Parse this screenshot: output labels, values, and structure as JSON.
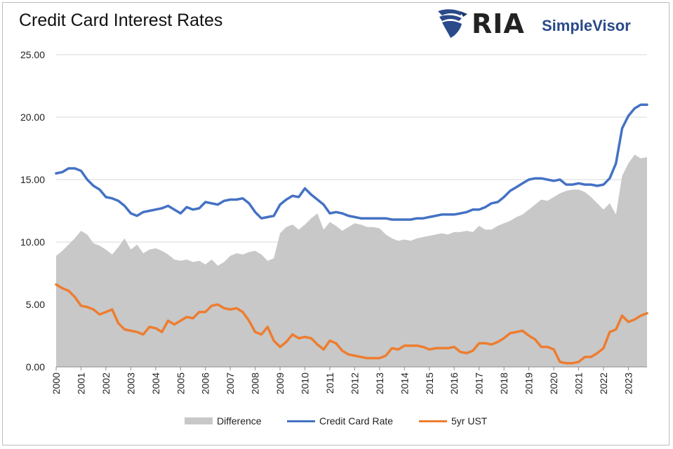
{
  "header": {
    "logo_text": "RIA",
    "brand_text": "SimpleVisor"
  },
  "colors": {
    "difference": "#c8c8c8",
    "credit_card": "#4472c4",
    "ust": "#ed7d31",
    "grid": "#d9d9d9",
    "logo_blue": "#2a4a8a"
  },
  "chart_data": {
    "type": "area",
    "title": "Credit Card Interest Rates",
    "xlabel": "",
    "ylabel": "",
    "ylim": [
      0,
      25
    ],
    "xlim": [
      2000,
      2023.75
    ],
    "yticks": [
      "0.00",
      "5.00",
      "10.00",
      "15.00",
      "20.00",
      "25.00"
    ],
    "xticks": [
      "2000",
      "2001",
      "2002",
      "2003",
      "2004",
      "2005",
      "2006",
      "2007",
      "2008",
      "2009",
      "2010",
      "2011",
      "2012",
      "2013",
      "2014",
      "2015",
      "2016",
      "2017",
      "2018",
      "2019",
      "2020",
      "2021",
      "2022",
      "2023"
    ],
    "grid": true,
    "legend_position": "bottom",
    "series": [
      {
        "name": "Difference",
        "type": "area",
        "x": [
          2000,
          2000.25,
          2000.5,
          2000.75,
          2001,
          2001.25,
          2001.5,
          2001.75,
          2002,
          2002.25,
          2002.5,
          2002.75,
          2003,
          2003.25,
          2003.5,
          2003.75,
          2004,
          2004.25,
          2004.5,
          2004.75,
          2005,
          2005.25,
          2005.5,
          2005.75,
          2006,
          2006.25,
          2006.5,
          2006.75,
          2007,
          2007.25,
          2007.5,
          2007.75,
          2008,
          2008.25,
          2008.5,
          2008.75,
          2009,
          2009.25,
          2009.5,
          2009.75,
          2010,
          2010.25,
          2010.5,
          2010.75,
          2011,
          2011.25,
          2011.5,
          2011.75,
          2012,
          2012.25,
          2012.5,
          2012.75,
          2013,
          2013.25,
          2013.5,
          2013.75,
          2014,
          2014.25,
          2014.5,
          2014.75,
          2015,
          2015.25,
          2015.5,
          2015.75,
          2016,
          2016.25,
          2016.5,
          2016.75,
          2017,
          2017.25,
          2017.5,
          2017.75,
          2018,
          2018.25,
          2018.5,
          2018.75,
          2019,
          2019.25,
          2019.5,
          2019.75,
          2020,
          2020.25,
          2020.5,
          2020.75,
          2021,
          2021.25,
          2021.5,
          2021.75,
          2022,
          2022.25,
          2022.5,
          2022.75,
          2023,
          2023.25,
          2023.5,
          2023.75
        ],
        "values": [
          8.9,
          9.3,
          9.8,
          10.3,
          10.9,
          10.6,
          9.9,
          9.7,
          9.4,
          9.0,
          9.6,
          10.3,
          9.4,
          9.8,
          9.1,
          9.4,
          9.5,
          9.3,
          9.0,
          8.6,
          8.5,
          8.6,
          8.4,
          8.5,
          8.2,
          8.6,
          8.1,
          8.4,
          8.9,
          9.1,
          9.0,
          9.2,
          9.3,
          9.0,
          8.5,
          8.7,
          10.7,
          11.2,
          11.4,
          11.0,
          11.4,
          11.9,
          12.3,
          11.0,
          11.6,
          11.3,
          10.9,
          11.2,
          11.5,
          11.4,
          11.2,
          11.2,
          11.1,
          10.6,
          10.3,
          10.1,
          10.2,
          10.1,
          10.3,
          10.4,
          10.5,
          10.6,
          10.7,
          10.6,
          10.8,
          10.8,
          10.9,
          10.8,
          11.3,
          11.0,
          11.0,
          11.3,
          11.5,
          11.7,
          12.0,
          12.2,
          12.6,
          13.0,
          13.4,
          13.3,
          13.6,
          13.9,
          14.1,
          14.2,
          14.2,
          14.0,
          13.6,
          13.1,
          12.6,
          13.1,
          12.2,
          15.3,
          16.3,
          17.0,
          16.7,
          16.8
        ]
      },
      {
        "name": "Credit Card Rate",
        "type": "line",
        "x": [
          2000,
          2000.25,
          2000.5,
          2000.75,
          2001,
          2001.25,
          2001.5,
          2001.75,
          2002,
          2002.25,
          2002.5,
          2002.75,
          2003,
          2003.25,
          2003.5,
          2003.75,
          2004,
          2004.25,
          2004.5,
          2004.75,
          2005,
          2005.25,
          2005.5,
          2005.75,
          2006,
          2006.25,
          2006.5,
          2006.75,
          2007,
          2007.25,
          2007.5,
          2007.75,
          2008,
          2008.25,
          2008.5,
          2008.75,
          2009,
          2009.25,
          2009.5,
          2009.75,
          2010,
          2010.25,
          2010.5,
          2010.75,
          2011,
          2011.25,
          2011.5,
          2011.75,
          2012,
          2012.25,
          2012.5,
          2012.75,
          2013,
          2013.25,
          2013.5,
          2013.75,
          2014,
          2014.25,
          2014.5,
          2014.75,
          2015,
          2015.25,
          2015.5,
          2015.75,
          2016,
          2016.25,
          2016.5,
          2016.75,
          2017,
          2017.25,
          2017.5,
          2017.75,
          2018,
          2018.25,
          2018.5,
          2018.75,
          2019,
          2019.25,
          2019.5,
          2019.75,
          2020,
          2020.25,
          2020.5,
          2020.75,
          2021,
          2021.25,
          2021.5,
          2021.75,
          2022,
          2022.25,
          2022.5,
          2022.75,
          2023,
          2023.25,
          2023.5,
          2023.75
        ],
        "values": [
          15.5,
          15.6,
          15.9,
          15.9,
          15.7,
          15.0,
          14.5,
          14.2,
          13.6,
          13.5,
          13.3,
          12.9,
          12.3,
          12.1,
          12.4,
          12.5,
          12.6,
          12.7,
          12.9,
          12.6,
          12.3,
          12.8,
          12.6,
          12.7,
          13.2,
          13.1,
          13.0,
          13.3,
          13.4,
          13.4,
          13.5,
          13.1,
          12.4,
          11.9,
          12.0,
          12.1,
          13.0,
          13.4,
          13.7,
          13.6,
          14.3,
          13.8,
          13.4,
          13.0,
          12.3,
          12.4,
          12.3,
          12.1,
          12.0,
          11.9,
          11.9,
          11.9,
          11.9,
          11.9,
          11.8,
          11.8,
          11.8,
          11.8,
          11.9,
          11.9,
          12.0,
          12.1,
          12.2,
          12.2,
          12.2,
          12.3,
          12.4,
          12.6,
          12.6,
          12.8,
          13.1,
          13.2,
          13.6,
          14.1,
          14.4,
          14.7,
          15.0,
          15.1,
          15.1,
          15.0,
          14.9,
          15.0,
          14.6,
          14.6,
          14.7,
          14.6,
          14.6,
          14.5,
          14.6,
          15.1,
          16.3,
          19.1,
          20.1,
          20.7,
          21.0,
          21.0
        ]
      },
      {
        "name": "5yr UST",
        "type": "line",
        "x": [
          2000,
          2000.25,
          2000.5,
          2000.75,
          2001,
          2001.25,
          2001.5,
          2001.75,
          2002,
          2002.25,
          2002.5,
          2002.75,
          2003,
          2003.25,
          2003.5,
          2003.75,
          2004,
          2004.25,
          2004.5,
          2004.75,
          2005,
          2005.25,
          2005.5,
          2005.75,
          2006,
          2006.25,
          2006.5,
          2006.75,
          2007,
          2007.25,
          2007.5,
          2007.75,
          2008,
          2008.25,
          2008.5,
          2008.75,
          2009,
          2009.25,
          2009.5,
          2009.75,
          2010,
          2010.25,
          2010.5,
          2010.75,
          2011,
          2011.25,
          2011.5,
          2011.75,
          2012,
          2012.25,
          2012.5,
          2012.75,
          2013,
          2013.25,
          2013.5,
          2013.75,
          2014,
          2014.25,
          2014.5,
          2014.75,
          2015,
          2015.25,
          2015.5,
          2015.75,
          2016,
          2016.25,
          2016.5,
          2016.75,
          2017,
          2017.25,
          2017.5,
          2017.75,
          2018,
          2018.25,
          2018.5,
          2018.75,
          2019,
          2019.25,
          2019.5,
          2019.75,
          2020,
          2020.25,
          2020.5,
          2020.75,
          2021,
          2021.25,
          2021.5,
          2021.75,
          2022,
          2022.25,
          2022.5,
          2022.75,
          2023,
          2023.25,
          2023.5,
          2023.75
        ],
        "values": [
          6.6,
          6.3,
          6.1,
          5.6,
          4.9,
          4.8,
          4.6,
          4.2,
          4.4,
          4.6,
          3.5,
          3.0,
          2.9,
          2.8,
          2.6,
          3.2,
          3.1,
          2.8,
          3.7,
          3.4,
          3.7,
          4.0,
          3.9,
          4.4,
          4.4,
          4.9,
          5.0,
          4.7,
          4.6,
          4.7,
          4.4,
          3.7,
          2.8,
          2.6,
          3.2,
          2.1,
          1.6,
          2.0,
          2.6,
          2.3,
          2.4,
          2.3,
          1.8,
          1.4,
          2.1,
          1.9,
          1.3,
          1.0,
          0.9,
          0.8,
          0.7,
          0.7,
          0.7,
          0.9,
          1.5,
          1.4,
          1.7,
          1.7,
          1.7,
          1.6,
          1.4,
          1.5,
          1.5,
          1.5,
          1.6,
          1.2,
          1.1,
          1.3,
          1.9,
          1.9,
          1.8,
          2.0,
          2.3,
          2.7,
          2.8,
          2.9,
          2.5,
          2.2,
          1.6,
          1.6,
          1.4,
          0.4,
          0.3,
          0.3,
          0.4,
          0.8,
          0.8,
          1.1,
          1.5,
          2.8,
          3.0,
          4.1,
          3.6,
          3.8,
          4.1,
          4.3
        ]
      }
    ]
  }
}
